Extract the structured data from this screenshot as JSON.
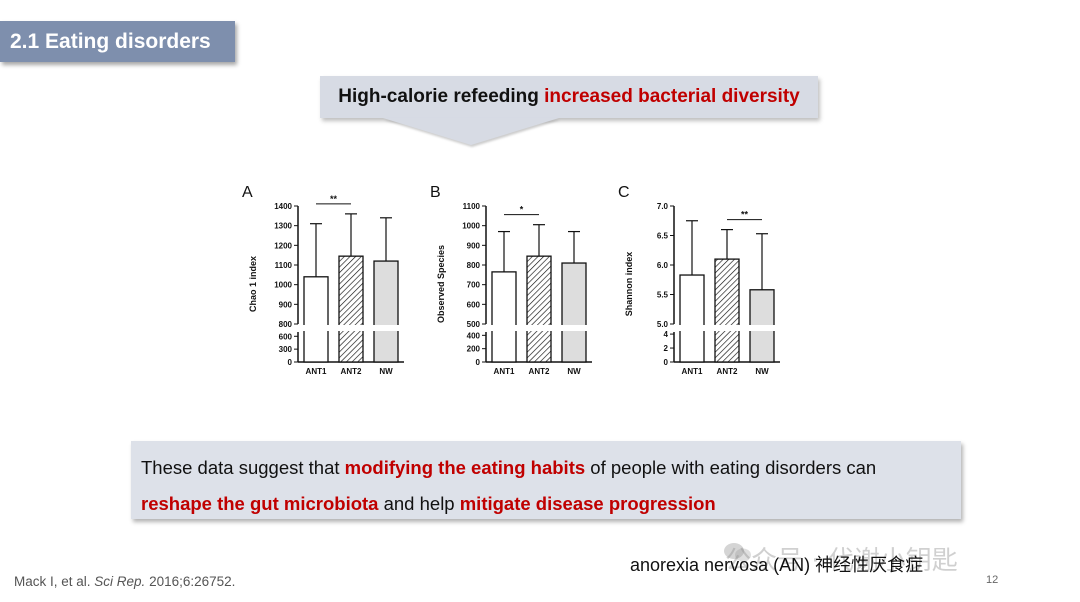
{
  "section_title": "2.1 Eating disorders",
  "callout": {
    "prefix": "High-calorie refeeding ",
    "highlight": "increased bacterial diversity"
  },
  "chart_data": [
    {
      "type": "bar",
      "panel": "A",
      "ylabel": "Chao 1 index",
      "categories": [
        "ANT1",
        "ANT2",
        "NW"
      ],
      "values": [
        1040,
        1145,
        1120
      ],
      "error_upper": [
        1310,
        1360,
        1340
      ],
      "yticks_lower": [
        0,
        300,
        600
      ],
      "yticks_upper": [
        800,
        900,
        1000,
        1100,
        1200,
        1300,
        1400
      ],
      "ylim_lower": [
        0,
        700
      ],
      "ylim_upper": [
        800,
        1400
      ],
      "fills": [
        "white",
        "hatched",
        "gray"
      ],
      "significance": {
        "from": "ANT1",
        "to": "ANT2",
        "label": "**"
      }
    },
    {
      "type": "bar",
      "panel": "B",
      "ylabel": "Observed Species",
      "categories": [
        "ANT1",
        "ANT2",
        "NW"
      ],
      "values": [
        765,
        845,
        810
      ],
      "error_upper": [
        970,
        1005,
        970
      ],
      "yticks_lower": [
        0,
        200,
        400
      ],
      "yticks_upper": [
        500,
        600,
        700,
        800,
        900,
        1000,
        1100
      ],
      "ylim_lower": [
        0,
        450
      ],
      "ylim_upper": [
        500,
        1100
      ],
      "fills": [
        "white",
        "hatched",
        "gray"
      ],
      "significance": {
        "from": "ANT1",
        "to": "ANT2",
        "label": "*"
      }
    },
    {
      "type": "bar",
      "panel": "C",
      "ylabel": "Shannon index",
      "categories": [
        "ANT1",
        "ANT2",
        "NW"
      ],
      "values": [
        5.83,
        6.1,
        5.58
      ],
      "error_upper": [
        6.75,
        6.6,
        6.53
      ],
      "yticks_lower": [
        0,
        2,
        4
      ],
      "yticks_upper": [
        5.0,
        5.5,
        6.0,
        6.5,
        7.0
      ],
      "ytick_labels_upper": [
        "5.0",
        "5.5",
        "6.0",
        "6.5",
        "7.0"
      ],
      "ylim_lower": [
        0,
        4.3
      ],
      "ylim_upper": [
        5.0,
        7.0
      ],
      "fills": [
        "white",
        "hatched",
        "gray"
      ],
      "significance": {
        "from": "ANT2",
        "to": "NW",
        "label": "**"
      }
    }
  ],
  "summary": {
    "p1": "These data suggest that ",
    "h1": "modifying the eating habits",
    "p2": " of people with eating disorders can",
    "h2": "reshape the gut microbiota",
    "p3": " and help ",
    "h3": "mitigate disease progression"
  },
  "citation": {
    "authors": "Mack I, et al. ",
    "journal": "Sci Rep.",
    "details": " 2016;6:26752."
  },
  "caption": "anorexia nervosa (AN) 神经性厌食症",
  "watermark": "公众号 · 代谢小钥匙",
  "page_number": "12",
  "colors": {
    "accent_red": "#c00000",
    "tag_bg": "#7e8fad",
    "box_bg": "#dde1e9",
    "bar_gray": "#dddddd"
  }
}
